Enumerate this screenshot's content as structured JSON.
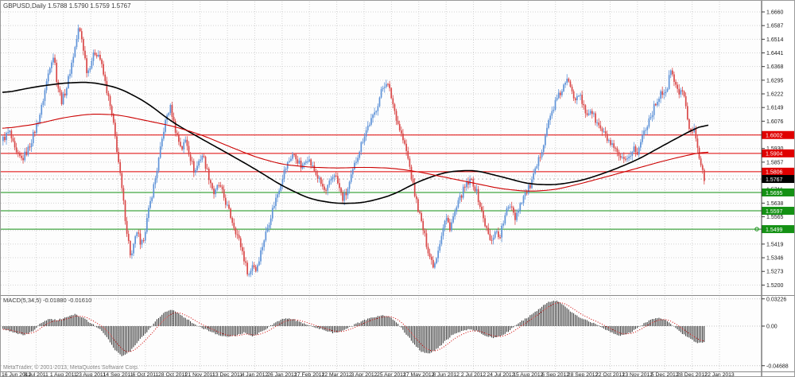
{
  "header": {
    "symbol_period": "GBPUSD,Daily",
    "ohlc": "1.5788 1.5790 1.5759 1.5767"
  },
  "y_axis": {
    "ticks": [
      "1.6660",
      "1.6587",
      "1.6514",
      "1.6441",
      "1.6368",
      "1.6295",
      "1.6222",
      "1.6149",
      "1.6076",
      "1.6003",
      "1.5930",
      "1.5857",
      "1.5784",
      "1.5711",
      "1.5638",
      "1.5565",
      "1.5492",
      "1.5419",
      "1.5346",
      "1.5273",
      "1.5200"
    ]
  },
  "x_axis": {
    "dates": [
      "16 Jun 2011",
      "8 Jul 2011",
      "1 Aug 2011",
      "23 Aug 2011",
      "14 Sep 2011",
      "6 Oct 2011",
      "28 Oct 2011",
      "21 Nov 2011",
      "13 Dec 2011",
      "4 Jan 2012",
      "26 Jan 2012",
      "17 Feb 2012",
      "12 Mar 2012",
      "3 Apr 2012",
      "25 Apr 2012",
      "17 May 2012",
      "8 Jun 2012",
      "2 Jul 2012",
      "24 Jul 2012",
      "15 Aug 2012",
      "6 Sep 2012",
      "28 Sep 2012",
      "22 Oct 2012",
      "13 Nov 2012",
      "5 Dec 2012",
      "28 Dec 2012",
      "22 Jan 2013"
    ]
  },
  "levels": {
    "red": [
      "1.6002",
      "1.5904",
      "1.5806"
    ],
    "green": [
      "1.5695",
      "1.5597",
      "1.5499"
    ],
    "bid": "1.5767"
  },
  "macd": {
    "label": "MACD(5,34,5) -0.01880 -0.01610",
    "scale_max": "0.03226",
    "scale_zero": "0.00",
    "scale_min": "-0.04688"
  },
  "footer": {
    "copyright": "MetaTrader, © 2001-2013, MetaQuotes Software Corp."
  },
  "colors": {
    "bull": "#5f93d8",
    "bear": "#d94848",
    "red_line": "#e00000",
    "green_line": "#149114",
    "bid_badge": "#000000",
    "ma_black": "#000000",
    "ma_red": "#cc0000",
    "macd_bar": "#3d3d3d",
    "macd_signal": "#d00000",
    "grid": "#d2d2d2",
    "axis_text": "#1a1a1a"
  },
  "chart_data": {
    "type": "candlestick",
    "symbol": "GBPUSD",
    "timeframe": "Daily",
    "ohlc_display": {
      "open": "1.5788",
      "high": "1.5790",
      "low": "1.5759",
      "close": "1.5767"
    },
    "y_range": [
      1.5195,
      1.668
    ],
    "bars_count": 420,
    "price_close_keyframes": [
      [
        2,
        1.598
      ],
      [
        10,
        1.602
      ],
      [
        18,
        1.59
      ],
      [
        26,
        1.587
      ],
      [
        34,
        1.593
      ],
      [
        44,
        1.605
      ],
      [
        50,
        1.614
      ],
      [
        56,
        1.627
      ],
      [
        62,
        1.64
      ],
      [
        66,
        1.643
      ],
      [
        70,
        1.628
      ],
      [
        76,
        1.618
      ],
      [
        82,
        1.626
      ],
      [
        88,
        1.638
      ],
      [
        93,
        1.648
      ],
      [
        97,
        1.657
      ],
      [
        100,
        1.654
      ],
      [
        104,
        1.644
      ],
      [
        108,
        1.633
      ],
      [
        113,
        1.64
      ],
      [
        118,
        1.6445
      ],
      [
        123,
        1.643
      ],
      [
        128,
        1.633
      ],
      [
        134,
        1.621
      ],
      [
        140,
        1.608
      ],
      [
        146,
        1.59
      ],
      [
        152,
        1.569
      ],
      [
        158,
        1.548
      ],
      [
        163,
        1.534
      ],
      [
        167,
        1.542
      ],
      [
        171,
        1.55
      ],
      [
        175,
        1.539
      ],
      [
        179,
        1.546
      ],
      [
        184,
        1.557
      ],
      [
        189,
        1.568
      ],
      [
        194,
        1.578
      ],
      [
        199,
        1.59
      ],
      [
        204,
        1.603
      ],
      [
        209,
        1.612
      ],
      [
        213,
        1.615
      ],
      [
        217,
        1.606
      ],
      [
        222,
        1.598
      ],
      [
        227,
        1.593
      ],
      [
        232,
        1.598
      ],
      [
        237,
        1.589
      ],
      [
        243,
        1.58
      ],
      [
        248,
        1.586
      ],
      [
        253,
        1.59
      ],
      [
        258,
        1.582
      ],
      [
        263,
        1.575
      ],
      [
        268,
        1.568
      ],
      [
        273,
        1.574
      ],
      [
        278,
        1.569
      ],
      [
        283,
        1.563
      ],
      [
        288,
        1.557
      ],
      [
        293,
        1.551
      ],
      [
        298,
        1.545
      ],
      [
        303,
        1.538
      ],
      [
        308,
        1.529
      ],
      [
        312,
        1.525
      ],
      [
        316,
        1.532
      ],
      [
        320,
        1.528
      ],
      [
        325,
        1.536
      ],
      [
        330,
        1.544
      ],
      [
        336,
        1.553
      ],
      [
        342,
        1.562
      ],
      [
        348,
        1.57
      ],
      [
        354,
        1.579
      ],
      [
        360,
        1.585
      ],
      [
        366,
        1.59
      ],
      [
        372,
        1.587
      ],
      [
        378,
        1.582
      ],
      [
        384,
        1.589
      ],
      [
        390,
        1.584
      ],
      [
        396,
        1.579
      ],
      [
        402,
        1.574
      ],
      [
        408,
        1.569
      ],
      [
        414,
        1.576
      ],
      [
        419,
        1.58
      ],
      [
        424,
        1.573
      ],
      [
        429,
        1.566
      ],
      [
        434,
        1.569
      ],
      [
        439,
        1.576
      ],
      [
        444,
        1.584
      ],
      [
        450,
        1.592
      ],
      [
        456,
        1.6
      ],
      [
        462,
        1.606
      ],
      [
        468,
        1.61
      ],
      [
        474,
        1.618
      ],
      [
        479,
        1.625
      ],
      [
        484,
        1.629
      ],
      [
        489,
        1.623
      ],
      [
        494,
        1.614
      ],
      [
        499,
        1.606
      ],
      [
        504,
        1.599
      ],
      [
        509,
        1.592
      ],
      [
        514,
        1.582
      ],
      [
        519,
        1.57
      ],
      [
        524,
        1.561
      ],
      [
        529,
        1.552
      ],
      [
        534,
        1.543
      ],
      [
        539,
        1.535
      ],
      [
        544,
        1.53
      ],
      [
        549,
        1.539
      ],
      [
        554,
        1.548
      ],
      [
        559,
        1.556
      ],
      [
        564,
        1.551
      ],
      [
        569,
        1.557
      ],
      [
        574,
        1.563
      ],
      [
        580,
        1.57
      ],
      [
        586,
        1.574
      ],
      [
        592,
        1.576
      ],
      [
        598,
        1.569
      ],
      [
        604,
        1.559
      ],
      [
        610,
        1.55
      ],
      [
        616,
        1.542
      ],
      [
        621,
        1.55
      ],
      [
        626,
        1.545
      ],
      [
        631,
        1.553
      ],
      [
        636,
        1.56
      ],
      [
        641,
        1.564
      ],
      [
        646,
        1.556
      ],
      [
        651,
        1.562
      ],
      [
        656,
        1.567
      ],
      [
        661,
        1.57
      ],
      [
        666,
        1.574
      ],
      [
        671,
        1.58
      ],
      [
        676,
        1.587
      ],
      [
        681,
        1.595
      ],
      [
        686,
        1.604
      ],
      [
        691,
        1.611
      ],
      [
        696,
        1.617
      ],
      [
        701,
        1.621
      ],
      [
        706,
        1.625
      ],
      [
        711,
        1.629
      ],
      [
        716,
        1.627
      ],
      [
        721,
        1.62
      ],
      [
        726,
        1.623
      ],
      [
        731,
        1.616
      ],
      [
        736,
        1.611
      ],
      [
        741,
        1.614
      ],
      [
        746,
        1.609
      ],
      [
        751,
        1.605
      ],
      [
        756,
        1.602
      ],
      [
        762,
        1.598
      ],
      [
        768,
        1.594
      ],
      [
        774,
        1.59
      ],
      [
        780,
        1.587
      ],
      [
        786,
        1.585
      ],
      [
        791,
        1.59
      ],
      [
        796,
        1.594
      ],
      [
        800,
        1.589
      ],
      [
        805,
        1.599
      ],
      [
        810,
        1.604
      ],
      [
        815,
        1.609
      ],
      [
        820,
        1.614
      ],
      [
        825,
        1.619
      ],
      [
        830,
        1.624
      ],
      [
        835,
        1.62
      ],
      [
        839,
        1.63
      ],
      [
        843,
        1.635
      ],
      [
        847,
        1.628
      ],
      [
        851,
        1.622
      ],
      [
        855,
        1.626
      ],
      [
        859,
        1.619
      ],
      [
        863,
        1.609
      ],
      [
        867,
        1.6
      ],
      [
        871,
        1.606
      ],
      [
        875,
        1.596
      ],
      [
        878,
        1.588
      ],
      [
        881,
        1.581
      ],
      [
        884,
        1.5767
      ]
    ],
    "ma_black_keyframes": [
      [
        2,
        1.6225
      ],
      [
        44,
        1.626
      ],
      [
        79,
        1.628
      ],
      [
        113,
        1.6285
      ],
      [
        148,
        1.6255
      ],
      [
        182,
        1.618
      ],
      [
        216,
        1.607
      ],
      [
        251,
        1.5985
      ],
      [
        285,
        1.5905
      ],
      [
        320,
        1.582
      ],
      [
        354,
        1.573
      ],
      [
        389,
        1.566
      ],
      [
        423,
        1.5635
      ],
      [
        457,
        1.564
      ],
      [
        492,
        1.568
      ],
      [
        526,
        1.5755
      ],
      [
        560,
        1.5805
      ],
      [
        595,
        1.5815
      ],
      [
        629,
        1.578
      ],
      [
        664,
        1.574
      ],
      [
        698,
        1.5735
      ],
      [
        732,
        1.576
      ],
      [
        767,
        1.581
      ],
      [
        801,
        1.587
      ],
      [
        835,
        1.595
      ],
      [
        870,
        1.603
      ],
      [
        890,
        1.6065
      ]
    ],
    "ma_red_keyframes": [
      [
        2,
        1.6035
      ],
      [
        44,
        1.606
      ],
      [
        79,
        1.6095
      ],
      [
        113,
        1.6115
      ],
      [
        148,
        1.611
      ],
      [
        182,
        1.608
      ],
      [
        216,
        1.605
      ],
      [
        251,
        1.6005
      ],
      [
        285,
        1.5945
      ],
      [
        320,
        1.5885
      ],
      [
        354,
        1.5845
      ],
      [
        389,
        1.583
      ],
      [
        423,
        1.5825
      ],
      [
        457,
        1.583
      ],
      [
        492,
        1.5825
      ],
      [
        526,
        1.5805
      ],
      [
        560,
        1.5775
      ],
      [
        595,
        1.5745
      ],
      [
        629,
        1.5715
      ],
      [
        664,
        1.57
      ],
      [
        698,
        1.571
      ],
      [
        732,
        1.5745
      ],
      [
        767,
        1.5785
      ],
      [
        801,
        1.5825
      ],
      [
        835,
        1.5865
      ],
      [
        870,
        1.59
      ],
      [
        890,
        1.5915
      ]
    ],
    "hlines_red": [
      1.6002,
      1.5904,
      1.5806
    ],
    "hlines_green": [
      1.5695,
      1.5597,
      1.5499
    ],
    "bid": 1.5767,
    "macd": {
      "params": "5,34,5",
      "last_macd": -0.0188,
      "last_signal": -0.0161,
      "scale": [
        -0.04688,
        0.03226
      ],
      "histogram_keyframes": [
        [
          2,
          -0.004
        ],
        [
          15,
          -0.007
        ],
        [
          28,
          -0.011
        ],
        [
          40,
          -0.006
        ],
        [
          50,
          0.004
        ],
        [
          60,
          0.009
        ],
        [
          70,
          0.007
        ],
        [
          80,
          0.01
        ],
        [
          92,
          0.014
        ],
        [
          102,
          0.01
        ],
        [
          112,
          0.004
        ],
        [
          122,
          -0.002
        ],
        [
          132,
          -0.012
        ],
        [
          142,
          -0.027
        ],
        [
          152,
          -0.036
        ],
        [
          162,
          -0.03
        ],
        [
          172,
          -0.018
        ],
        [
          182,
          -0.008
        ],
        [
          192,
          0.004
        ],
        [
          202,
          0.014
        ],
        [
          212,
          0.02
        ],
        [
          222,
          0.016
        ],
        [
          232,
          0.009
        ],
        [
          242,
          0.003
        ],
        [
          252,
          -0.002
        ],
        [
          262,
          -0.006
        ],
        [
          272,
          -0.01
        ],
        [
          285,
          -0.013
        ],
        [
          295,
          -0.011
        ],
        [
          305,
          -0.008
        ],
        [
          315,
          -0.012
        ],
        [
          325,
          -0.008
        ],
        [
          335,
          -0.002
        ],
        [
          345,
          0.004
        ],
        [
          357,
          0.01
        ],
        [
          367,
          0.008
        ],
        [
          377,
          0.004
        ],
        [
          387,
          0.001
        ],
        [
          397,
          -0.002
        ],
        [
          407,
          -0.005
        ],
        [
          417,
          -0.008
        ],
        [
          427,
          -0.006
        ],
        [
          437,
          -0.002
        ],
        [
          447,
          0.003
        ],
        [
          457,
          0.007
        ],
        [
          467,
          0.01
        ],
        [
          478,
          0.013
        ],
        [
          488,
          0.011
        ],
        [
          498,
          0.004
        ],
        [
          508,
          -0.008
        ],
        [
          518,
          -0.02
        ],
        [
          528,
          -0.03
        ],
        [
          538,
          -0.033
        ],
        [
          548,
          -0.027
        ],
        [
          558,
          -0.018
        ],
        [
          568,
          -0.01
        ],
        [
          578,
          -0.006
        ],
        [
          588,
          -0.004
        ],
        [
          598,
          -0.006
        ],
        [
          608,
          -0.011
        ],
        [
          618,
          -0.014
        ],
        [
          628,
          -0.012
        ],
        [
          638,
          -0.006
        ],
        [
          648,
          0.002
        ],
        [
          658,
          0.008
        ],
        [
          668,
          0.014
        ],
        [
          678,
          0.022
        ],
        [
          688,
          0.028
        ],
        [
          698,
          0.03
        ],
        [
          708,
          0.024
        ],
        [
          718,
          0.016
        ],
        [
          728,
          0.01
        ],
        [
          738,
          0.006
        ],
        [
          748,
          0.002
        ],
        [
          758,
          -0.003
        ],
        [
          768,
          -0.008
        ],
        [
          778,
          -0.011
        ],
        [
          788,
          -0.009
        ],
        [
          798,
          -0.004
        ],
        [
          808,
          0.003
        ],
        [
          818,
          0.008
        ],
        [
          828,
          0.01
        ],
        [
          838,
          0.006
        ],
        [
          848,
          -0.002
        ],
        [
          858,
          -0.01
        ],
        [
          868,
          -0.016
        ],
        [
          876,
          -0.02
        ],
        [
          884,
          -0.0188
        ]
      ]
    }
  }
}
